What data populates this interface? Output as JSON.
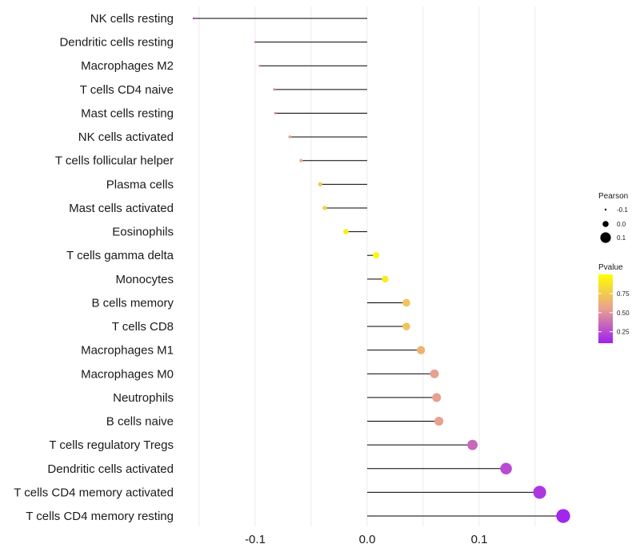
{
  "chart_data": {
    "type": "lollipop",
    "title": "",
    "xlabel": "",
    "ylabel": "",
    "xlim": [
      -0.165,
      0.185
    ],
    "x_ticks": [
      {
        "value": -0.1,
        "label": "-0.1"
      },
      {
        "value": 0.0,
        "label": "0.0"
      },
      {
        "value": 0.1,
        "label": "0.1"
      }
    ],
    "grid": true,
    "categories": [
      "NK cells resting",
      "Dendritic cells resting",
      "Macrophages M2",
      "T cells CD4 naive",
      "Mast cells resting",
      "NK cells activated",
      "T cells follicular helper",
      "Plasma cells",
      "Mast cells activated",
      "Eosinophils",
      "T cells gamma delta",
      "Monocytes",
      "B cells memory",
      "T cells CD8",
      "Macrophages M1",
      "Macrophages M0",
      "Neutrophils",
      "B cells naive",
      "T cells regulatory  Tregs ",
      "Dendritic cells activated",
      "T cells CD4 memory activated",
      "T cells CD4 memory resting"
    ],
    "series": [
      {
        "name": "Pearson",
        "values": [
          -0.155,
          -0.1,
          -0.096,
          -0.083,
          -0.082,
          -0.069,
          -0.059,
          -0.042,
          -0.038,
          -0.019,
          0.008,
          0.016,
          0.035,
          0.035,
          0.048,
          0.06,
          0.062,
          0.064,
          0.094,
          0.124,
          0.154,
          0.175
        ]
      },
      {
        "name": "Pvalue",
        "values": [
          0.22,
          0.3,
          0.35,
          0.45,
          0.45,
          0.55,
          0.6,
          0.75,
          0.8,
          0.92,
          0.96,
          0.9,
          0.72,
          0.72,
          0.64,
          0.55,
          0.55,
          0.55,
          0.35,
          0.25,
          0.18,
          0.12
        ]
      }
    ],
    "legend": {
      "position": "right",
      "size_title": "Pearson",
      "size_entries": [
        "-0.1",
        "0.0",
        "0.1"
      ],
      "size_values": [
        -0.1,
        0.0,
        0.1
      ],
      "color_title": "Pvalue",
      "color_ticks": [
        "0.75",
        "0.50",
        "0.25"
      ],
      "color_tick_values": [
        0.75,
        0.5,
        0.25
      ],
      "color_range": [
        0.1,
        1.0
      ],
      "color_low": "#a020f0",
      "color_mid": "#e8a090",
      "color_high": "#ffff00"
    }
  }
}
